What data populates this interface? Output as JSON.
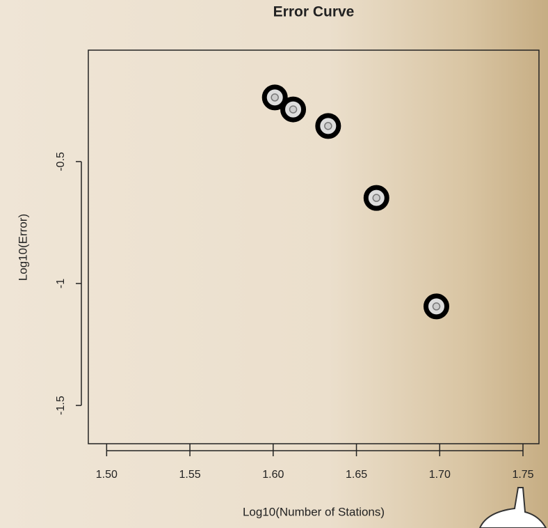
{
  "chart_data": {
    "type": "scatter",
    "title": "Error Curve",
    "x_label": "Log10(Number of Stations)",
    "y_label": "Log10(Error)",
    "x": [
      1.601,
      1.612,
      1.633,
      1.662,
      1.698
    ],
    "values": [
      -0.237,
      -0.286,
      -0.354,
      -0.649,
      -1.094
    ],
    "color": "#000000",
    "xlim": [
      1.489,
      1.7596
    ],
    "xticks": [
      {
        "value": 1.5,
        "label": "1.50"
      },
      1.55,
      {
        "value": 1.6,
        "label": "1.60"
      },
      1.65,
      {
        "value": 1.7,
        "label": "1.70"
      },
      1.75
    ],
    "ylim": [
      -1.657,
      -0.043
    ],
    "yticks": [
      -1.5,
      -1.0,
      -0.5
    ],
    "grid": false
  }
}
